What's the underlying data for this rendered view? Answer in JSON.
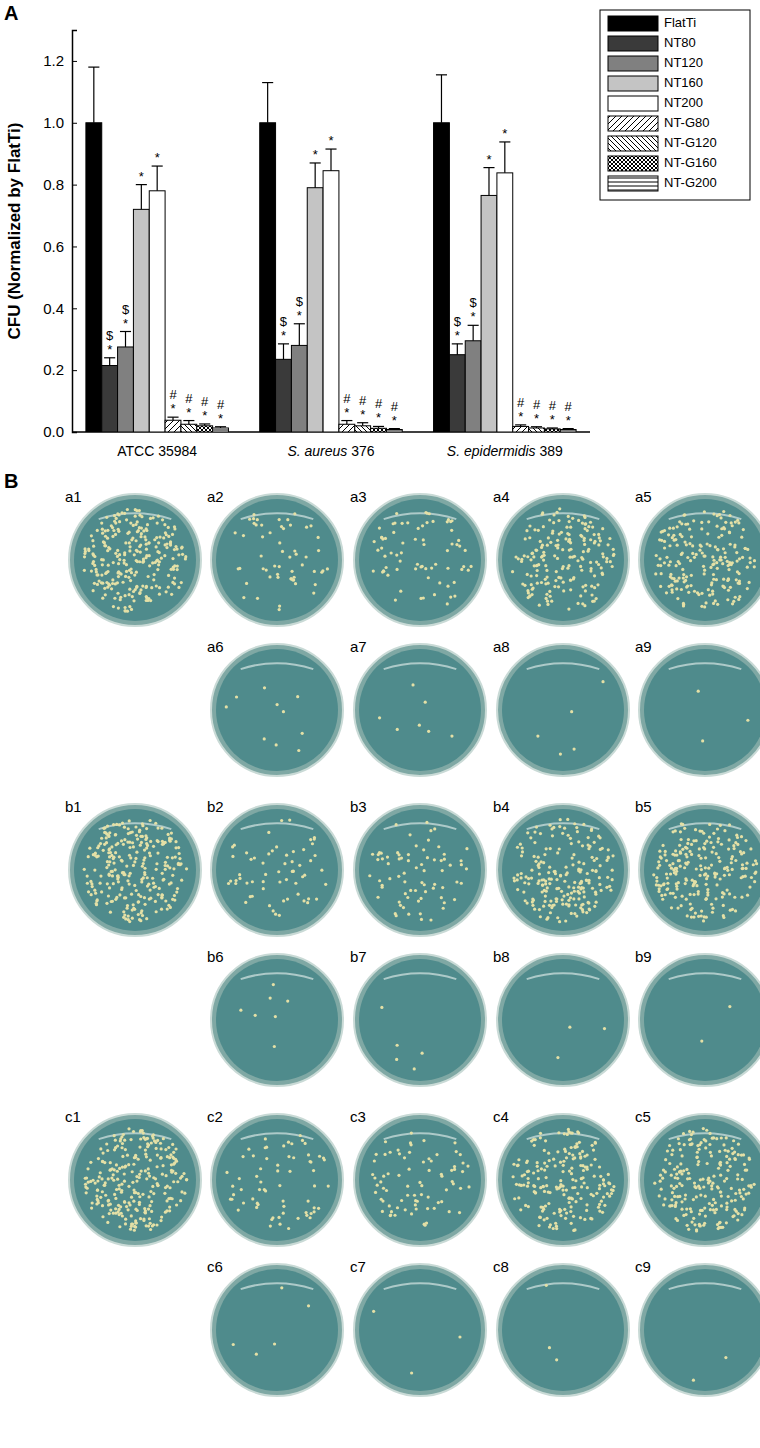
{
  "chart_data": {
    "type": "bar",
    "panel_label": "A",
    "y_label": "CFU (Normalized by FlatTi)",
    "categories": [
      "ATCC 35984",
      "S. aureus 376",
      "S. epidermidis 389"
    ],
    "ylim": [
      0,
      1.3
    ],
    "yticks": [
      {
        "value": 0,
        "label": "0.0"
      },
      0.2,
      0.4,
      0.6,
      0.8,
      {
        "value": 1,
        "label": "1.0"
      },
      1.2
    ],
    "legend": "right",
    "series": [
      {
        "name": "FlatTi",
        "color": "#000000",
        "values": [
          1.0,
          1.0,
          1.0
        ],
        "errors": [
          0.18,
          0.13,
          0.155
        ]
      },
      {
        "name": "NT80",
        "color": "#3a3a3a",
        "values": [
          0.215,
          0.235,
          0.25
        ],
        "errors": [
          0.025,
          0.05,
          0.035
        ],
        "significance": [
          "$",
          "*"
        ]
      },
      {
        "name": "NT120",
        "color": "#808080",
        "values": [
          0.275,
          0.28,
          0.295
        ],
        "errors": [
          0.05,
          0.07,
          0.05
        ],
        "significance": [
          "$",
          "*"
        ]
      },
      {
        "name": "NT160",
        "color": "#c4c4c4",
        "values": [
          0.72,
          0.79,
          0.765
        ],
        "errors": [
          0.08,
          0.08,
          0.09
        ],
        "significance": [
          "*"
        ]
      },
      {
        "name": "NT200",
        "color": "#ffffff",
        "values": [
          0.78,
          0.845,
          0.838
        ],
        "errors": [
          0.08,
          0.07,
          0.1
        ],
        "significance": [
          "*"
        ]
      },
      {
        "name": "NT-G80",
        "color": "#ffffff",
        "values": [
          0.038,
          0.025,
          0.018
        ],
        "errors": [
          0.01,
          0.012,
          0.005
        ],
        "significance": [
          "#",
          "*"
        ]
      },
      {
        "name": "NT-G120",
        "color": "#ffffff",
        "values": [
          0.025,
          0.02,
          0.013
        ],
        "errors": [
          0.012,
          0.01,
          0.004
        ],
        "significance": [
          "#",
          "*"
        ]
      },
      {
        "name": "NT-G160",
        "color": "#ffffff",
        "values": [
          0.02,
          0.012,
          0.01
        ],
        "errors": [
          0.006,
          0.006,
          0.003
        ],
        "significance": [
          "#",
          "*"
        ]
      },
      {
        "name": "NT-G200",
        "color": "#ffffff",
        "values": [
          0.013,
          0.008,
          0.008
        ],
        "errors": [
          0.004,
          0.003,
          0.003
        ],
        "significance": [
          "#",
          "*"
        ]
      }
    ]
  },
  "plates": {
    "panel_label": "B",
    "rows": [
      {
        "labels": [
          "a1",
          "a2",
          "a3",
          "a4",
          "a5",
          "a6",
          "a7",
          "a8",
          "a9"
        ]
      },
      {
        "labels": [
          "b1",
          "b2",
          "b3",
          "b4",
          "b5",
          "b6",
          "b7",
          "b8",
          "b9"
        ]
      },
      {
        "labels": [
          "c1",
          "c2",
          "c3",
          "c4",
          "c5",
          "c6",
          "c7",
          "c8",
          "c9"
        ]
      }
    ]
  }
}
